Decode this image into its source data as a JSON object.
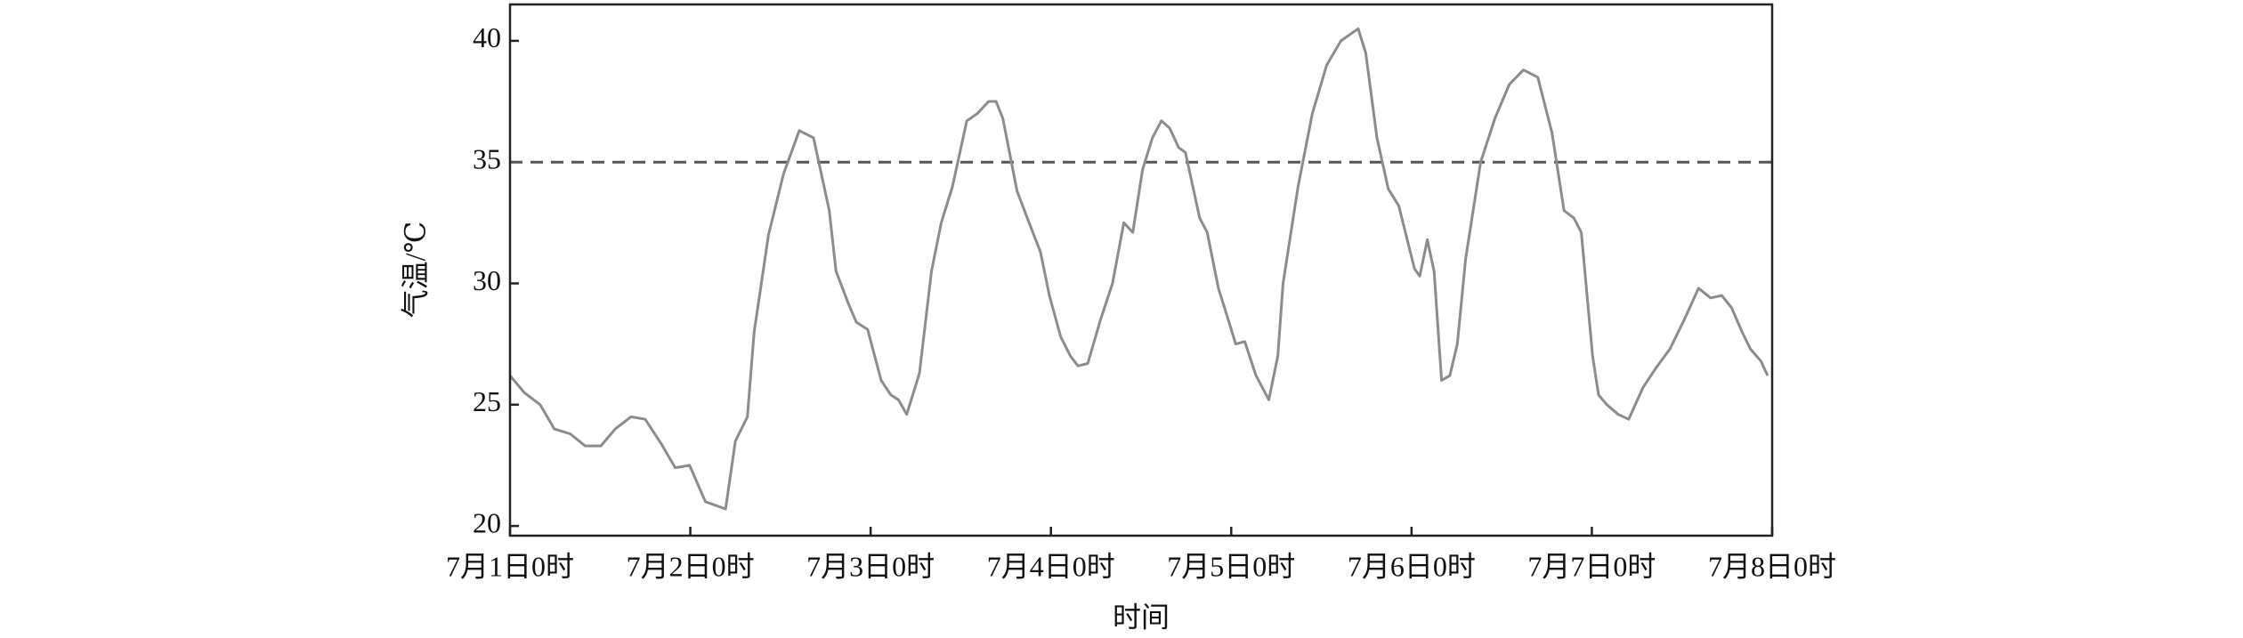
{
  "chart_data": {
    "type": "line",
    "x_label": "时间",
    "y_label": "气温/℃",
    "x": [
      0,
      1.9,
      4.0,
      5.9,
      8.0,
      10.0,
      12.1,
      14.0,
      16.1,
      18.0,
      20.1,
      22.0,
      23.9,
      26.0,
      28.7,
      30.0,
      31.6,
      32.5,
      34.4,
      36.4,
      38.5,
      40.4,
      42.5,
      43.4,
      45.0,
      46.1,
      47.6,
      49.4,
      50.7,
      51.7,
      52.8,
      54.5,
      56.1,
      57.4,
      58.9,
      60.8,
      62.2,
      63.7,
      64.7,
      65.6,
      67.5,
      69.1,
      70.6,
      71.8,
      73.3,
      74.6,
      75.6,
      76.9,
      78.6,
      80.2,
      81.7,
      82.9,
      84.2,
      85.5,
      86.7,
      87.8,
      89.0,
      89.9,
      91.8,
      92.8,
      94.3,
      95.7,
      96.6,
      97.8,
      99.3,
      101.0,
      102.2,
      102.9,
      104.9,
      106.8,
      108.7,
      110.6,
      112.9,
      113.9,
      115.4,
      116.9,
      118.3,
      120.4,
      121.1,
      122.1,
      123.0,
      124.0,
      125.1,
      126.1,
      127.2,
      129.2,
      131.1,
      133.0,
      134.9,
      136.8,
      138.7,
      140.3,
      141.6,
      142.6,
      144.1,
      144.9,
      146.0,
      147.5,
      148.9,
      150.8,
      152.5,
      154.4,
      156.3,
      158.2,
      159.8,
      161.3,
      162.6,
      164.0,
      165.1,
      166.5,
      167.4
    ],
    "series": [
      {
        "name": "气温",
        "color": "#8c8c8c",
        "values": [
          26.2,
          25.5,
          25.0,
          24.0,
          23.8,
          23.3,
          23.3,
          24.0,
          24.5,
          24.4,
          23.4,
          22.4,
          22.5,
          21.0,
          20.7,
          23.5,
          24.5,
          28.0,
          32.0,
          34.5,
          36.3,
          36.0,
          33.0,
          30.5,
          29.2,
          28.4,
          28.1,
          26.0,
          25.4,
          25.2,
          24.6,
          26.3,
          30.5,
          32.5,
          34.0,
          36.7,
          37.0,
          37.5,
          37.5,
          36.8,
          33.8,
          32.5,
          31.3,
          29.5,
          27.8,
          27.0,
          26.6,
          26.7,
          28.5,
          30.0,
          32.5,
          32.1,
          34.7,
          36.0,
          36.7,
          36.4,
          35.6,
          35.4,
          32.7,
          32.1,
          29.8,
          28.4,
          27.5,
          27.6,
          26.2,
          25.2,
          27.0,
          30.0,
          34.0,
          37.0,
          39.0,
          40.0,
          40.5,
          39.5,
          36.0,
          33.9,
          33.2,
          30.6,
          30.3,
          31.8,
          30.5,
          26.0,
          26.2,
          27.5,
          31.0,
          35.0,
          36.8,
          38.2,
          38.8,
          38.5,
          36.2,
          33.0,
          32.7,
          32.1,
          27.0,
          25.4,
          25.0,
          24.6,
          24.4,
          25.7,
          26.5,
          27.3,
          28.5,
          29.8,
          29.4,
          29.5,
          29.0,
          28.0,
          27.3,
          26.8,
          26.2
        ]
      }
    ],
    "reference_line": 35,
    "reference_color": "#555555",
    "xlim": [
      0,
      168
    ],
    "xticks": [
      {
        "value": 0,
        "label": "7月1日0时"
      },
      {
        "value": 24,
        "label": "7月2日0时"
      },
      {
        "value": 48,
        "label": "7月3日0时"
      },
      {
        "value": 72,
        "label": "7月4日0时"
      },
      {
        "value": 96,
        "label": "7月5日0时"
      },
      {
        "value": 120,
        "label": "7月6日0时"
      },
      {
        "value": 144,
        "label": "7月7日0时"
      },
      {
        "value": 168,
        "label": "7月8日0时"
      }
    ],
    "ylim": [
      19.6,
      41.5
    ],
    "yticks": [
      20,
      25,
      30,
      35,
      40
    ]
  }
}
